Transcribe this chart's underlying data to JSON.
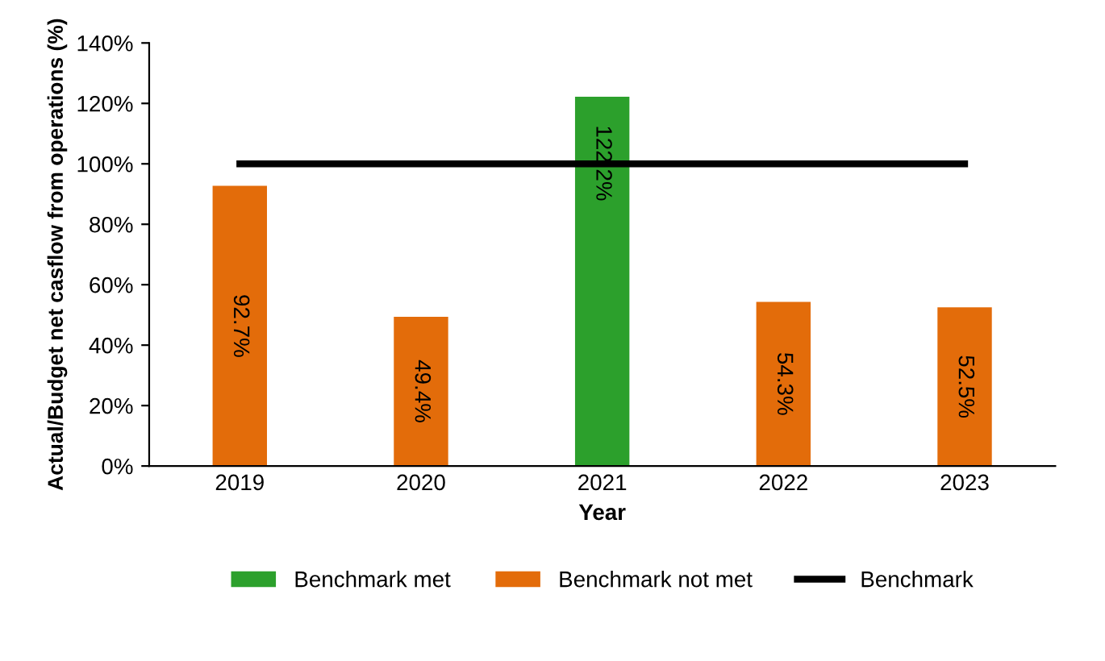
{
  "chart_data": {
    "type": "bar",
    "xlabel": "Year",
    "ylabel": "Actual/Budget net casflow from operations (%)",
    "categories": [
      "2019",
      "2020",
      "2021",
      "2022",
      "2023"
    ],
    "series": [
      {
        "name": "Benchmark met",
        "color": "#2ca02c",
        "values": [
          null,
          null,
          122.2,
          null,
          null
        ],
        "value_labels": [
          null,
          null,
          "122.2%",
          null,
          null
        ]
      },
      {
        "name": "Benchmark not met",
        "color": "#e36c0a",
        "values": [
          92.7,
          49.4,
          null,
          54.3,
          52.5
        ],
        "value_labels": [
          "92.7%",
          "49.4%",
          null,
          "54.3%",
          "52.5%"
        ]
      },
      {
        "name": "Benchmark",
        "type": "line",
        "color": "#000000",
        "values": [
          100,
          100,
          100,
          100,
          100
        ],
        "marker": "none"
      }
    ],
    "ylim": [
      0,
      140
    ],
    "yticks": [
      {
        "value": 0,
        "label": "0%"
      },
      {
        "value": 20,
        "label": "20%"
      },
      {
        "value": 40,
        "label": "40%"
      },
      {
        "value": 60,
        "label": "60%"
      },
      {
        "value": 80,
        "label": "80%"
      },
      {
        "value": 100,
        "label": "100%"
      },
      {
        "value": 120,
        "label": "120%"
      },
      {
        "value": 140,
        "label": "140%"
      }
    ],
    "grid": false,
    "legend": "bottom"
  }
}
